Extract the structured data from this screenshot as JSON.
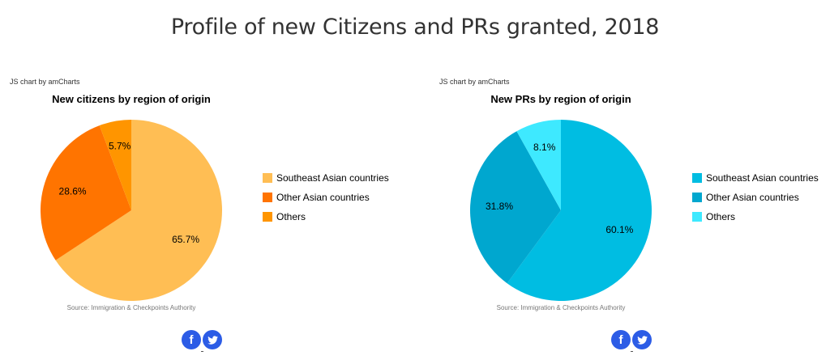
{
  "page": {
    "title": "Profile of new Citizens and PRs granted, 2018"
  },
  "colors": {
    "citizens": [
      "#ffbe54",
      "#ff7400",
      "#ff9500"
    ],
    "prs": [
      "#00bde2",
      "#00a7cf",
      "#3ee9ff"
    ],
    "share": "#2c5ce6"
  },
  "chart_data": [
    {
      "type": "pie",
      "title": "New citizens by region of origin",
      "credit": "JS chart by amCharts",
      "source": "Source: Immigration & Checkpoints Authority",
      "labels": [
        "Southeast Asian countries",
        "Other Asian countries",
        "Others"
      ],
      "values": [
        65.7,
        28.6,
        5.7
      ],
      "value_labels": [
        "65.7%",
        "28.6%",
        "5.7%"
      ],
      "legend_position": "right"
    },
    {
      "type": "pie",
      "title": "New PRs by region of origin",
      "credit": "JS chart by amCharts",
      "source": "Source: Immigration & Checkpoints Authority",
      "labels": [
        "Southeast Asian countries",
        "Other Asian countries",
        "Others"
      ],
      "values": [
        60.1,
        31.8,
        8.1
      ],
      "value_labels": [
        "60.1%",
        "31.8%",
        "8.1%"
      ],
      "legend_position": "right"
    }
  ],
  "share": {
    "facebook_icon": "facebook-icon",
    "twitter_icon": "twitter-icon"
  }
}
